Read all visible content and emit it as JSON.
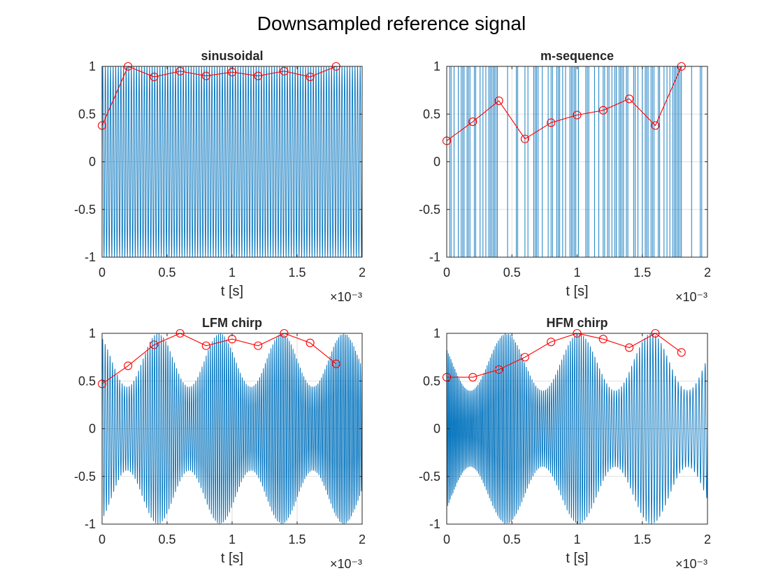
{
  "figure": {
    "title": "Downsampled reference signal"
  },
  "colors": {
    "signal": "#0072BD",
    "markers": "#FF0000",
    "axes": "#262626",
    "grid": "#DFDFDF"
  },
  "chart_data": [
    {
      "type": "line",
      "title": "sinusoidal",
      "xlabel": "t [s]",
      "x_exponent_label": "×10⁻³",
      "xlim": [
        0,
        2
      ],
      "ylim": [
        -1,
        1
      ],
      "xticks": [
        "0",
        "0.5",
        "1",
        "1.5",
        "2"
      ],
      "xtick_values": [
        0,
        0.5,
        1,
        1.5,
        2
      ],
      "yticks": [
        "-1",
        "-0.5",
        "0",
        "0.5",
        "1"
      ],
      "ytick_values": [
        -1,
        -0.5,
        0,
        0.5,
        1
      ],
      "grid": true,
      "signal": {
        "kind": "sinusoid",
        "cycles": 100,
        "amplitude": 1
      },
      "series": [
        {
          "values": {
            "x": [
              0,
              0.2,
              0.4,
              0.6,
              0.8,
              1.0,
              1.2,
              1.4,
              1.6,
              1.8
            ],
            "y": [
              0.38,
              1.0,
              0.89,
              0.95,
              0.9,
              0.94,
              0.9,
              0.95,
              0.89,
              1.0
            ]
          }
        }
      ]
    },
    {
      "type": "line",
      "title": "m-sequence",
      "xlabel": "t [s]",
      "x_exponent_label": "×10⁻³",
      "xlim": [
        0,
        2
      ],
      "ylim": [
        -1,
        1
      ],
      "xticks": [
        "0",
        "0.5",
        "1",
        "1.5",
        "2"
      ],
      "xtick_values": [
        0,
        0.5,
        1,
        1.5,
        2
      ],
      "yticks": [
        "-1",
        "-0.5",
        "0",
        "0.5",
        "1"
      ],
      "ytick_values": [
        -1,
        -0.5,
        0,
        0.5,
        1
      ],
      "grid": true,
      "signal": {
        "kind": "msequence",
        "chips": 180,
        "amplitude": 1
      },
      "series": [
        {
          "values": {
            "x": [
              0,
              0.2,
              0.4,
              0.6,
              0.8,
              1.0,
              1.2,
              1.4,
              1.6,
              1.8
            ],
            "y": [
              0.22,
              0.42,
              0.64,
              0.24,
              0.41,
              0.49,
              0.54,
              0.66,
              0.38,
              1.0
            ]
          }
        }
      ]
    },
    {
      "type": "line",
      "title": "LFM chirp",
      "xlabel": "t [s]",
      "x_exponent_label": "×10⁻³",
      "xlim": [
        0,
        2
      ],
      "ylim": [
        -1,
        1
      ],
      "xticks": [
        "0",
        "0.5",
        "1",
        "1.5",
        "2"
      ],
      "xtick_values": [
        0,
        0.5,
        1,
        1.5,
        2
      ],
      "yticks": [
        "-1",
        "-0.5",
        "0",
        "0.5",
        "1"
      ],
      "ytick_values": [
        -1,
        -0.5,
        0,
        0.5,
        1
      ],
      "grid": true,
      "signal": {
        "kind": "lfm",
        "cycles": 105,
        "amplitude": 1
      },
      "series": [
        {
          "values": {
            "x": [
              0,
              0.2,
              0.4,
              0.6,
              0.8,
              1.0,
              1.2,
              1.4,
              1.6,
              1.8
            ],
            "y": [
              0.47,
              0.66,
              0.88,
              1.0,
              0.87,
              0.94,
              0.87,
              1.0,
              0.9,
              0.68
            ]
          }
        }
      ]
    },
    {
      "type": "line",
      "title": "HFM chirp",
      "xlabel": "t [s]",
      "x_exponent_label": "×10⁻³",
      "xlim": [
        0,
        2
      ],
      "ylim": [
        -1,
        1
      ],
      "xticks": [
        "0",
        "0.5",
        "1",
        "1.5",
        "2"
      ],
      "xtick_values": [
        0,
        0.5,
        1,
        1.5,
        2
      ],
      "yticks": [
        "-1",
        "-0.5",
        "0",
        "0.5",
        "1"
      ],
      "ytick_values": [
        -1,
        -0.5,
        0,
        0.5,
        1
      ],
      "grid": true,
      "signal": {
        "kind": "hfm",
        "cycles": 105,
        "amplitude": 1
      },
      "series": [
        {
          "values": {
            "x": [
              0,
              0.2,
              0.4,
              0.6,
              0.8,
              1.0,
              1.2,
              1.4,
              1.6,
              1.8
            ],
            "y": [
              0.54,
              0.54,
              0.62,
              0.75,
              0.91,
              1.0,
              0.94,
              0.85,
              1.0,
              0.8
            ]
          }
        }
      ]
    }
  ]
}
